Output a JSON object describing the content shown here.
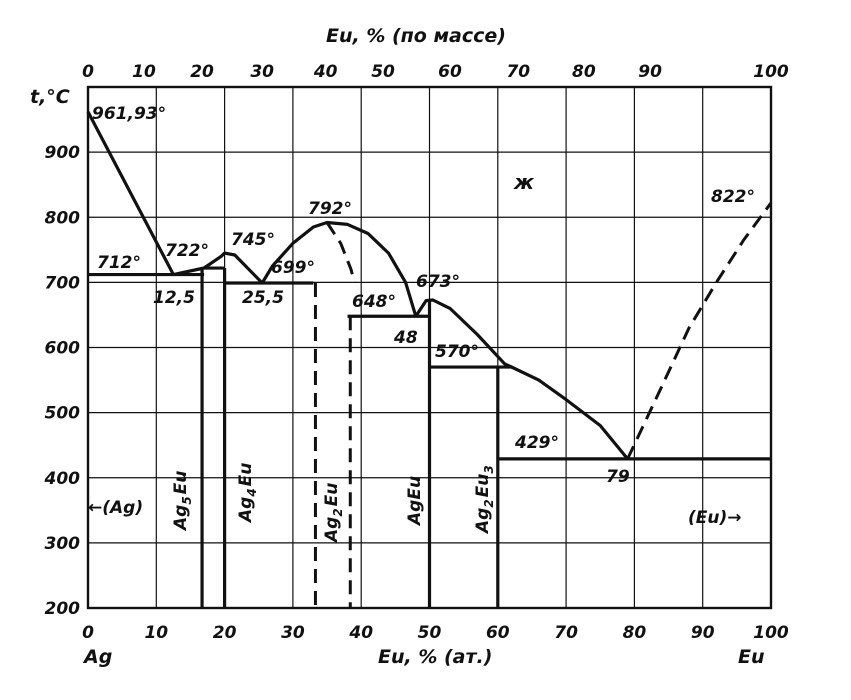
{
  "chart_data": {
    "type": "phase-diagram",
    "system": [
      "Ag",
      "Eu"
    ],
    "x_bottom": {
      "label": "Eu, % (ат.)",
      "ticks": [
        "0",
        "10",
        "20",
        "30",
        "40",
        "50",
        "60",
        "70",
        "80",
        "90",
        "100"
      ],
      "range": [
        0,
        100
      ],
      "left_element": "Ag",
      "right_element": "Eu"
    },
    "x_top": {
      "label": "Eu, % (по массе)",
      "ticks": [
        "0",
        "10",
        "20",
        "30",
        "40",
        "50",
        "60",
        "70",
        "80",
        "90",
        "100"
      ],
      "positions_at_pct": [
        0,
        8.2,
        16.7,
        25.5,
        34.8,
        43.2,
        53,
        63,
        72.6,
        82.3,
        100
      ]
    },
    "y": {
      "label": "t,°C",
      "ticks": [
        "200",
        "300",
        "400",
        "500",
        "600",
        "700",
        "800",
        "900"
      ],
      "range": [
        200,
        1000
      ]
    },
    "grid": true,
    "liquidus_solid": [
      [
        [
          0,
          961.93
        ],
        [
          12.5,
          712
        ]
      ],
      [
        [
          12.5,
          712
        ],
        [
          17,
          722
        ],
        [
          19.5,
          740
        ],
        [
          20,
          745
        ],
        [
          21.5,
          742
        ],
        [
          25.5,
          699
        ]
      ],
      [
        [
          25.5,
          699
        ],
        [
          27,
          725
        ],
        [
          30,
          760
        ],
        [
          33,
          785
        ],
        [
          35,
          792
        ],
        [
          38,
          789
        ],
        [
          41,
          775
        ],
        [
          44,
          745
        ],
        [
          46.5,
          700
        ],
        [
          48,
          648
        ]
      ],
      [
        [
          48,
          648
        ],
        [
          49.5,
          672
        ],
        [
          50.5,
          673
        ],
        [
          53,
          660
        ],
        [
          57,
          620
        ],
        [
          61,
          575
        ],
        [
          62,
          570
        ],
        [
          66,
          550
        ],
        [
          70,
          520
        ],
        [
          75,
          480
        ],
        [
          79,
          429
        ]
      ]
    ],
    "liquidus_dashed": [
      [
        [
          35,
          792
        ],
        [
          37,
          760
        ],
        [
          38.5,
          720
        ],
        [
          39,
          700
        ]
      ],
      [
        [
          79,
          429
        ],
        [
          84,
          540
        ],
        [
          88,
          630
        ],
        [
          92,
          700
        ],
        [
          96,
          765
        ],
        [
          100,
          822
        ]
      ]
    ],
    "solidus_lines": [
      {
        "x": [
          0,
          17
        ],
        "t": 712
      },
      {
        "x": [
          17,
          20
        ],
        "t": 722
      },
      {
        "x": [
          20,
          33
        ],
        "t": 699
      },
      {
        "x": [
          38,
          50
        ],
        "t": 648
      },
      {
        "x": [
          50,
          62
        ],
        "t": 570
      },
      {
        "x": [
          60,
          100
        ],
        "t": 429
      }
    ],
    "compound_lines": [
      {
        "name": "Ag5Eu",
        "x": 16.7,
        "t_top": 722,
        "style": "solid"
      },
      {
        "name": "Ag4Eu",
        "x": 20,
        "t_top": 722,
        "style": "solid"
      },
      {
        "name": "Ag2Eu",
        "x": 33.3,
        "t_top": 699,
        "style": "dashed"
      },
      {
        "name": "Ag2Eu",
        "x": 38.4,
        "t_top": 648,
        "style": "dashed"
      },
      {
        "name": "AgEu",
        "x": 50,
        "t_top": 673,
        "style": "solid"
      },
      {
        "name": "Ag2Eu3",
        "x": 60,
        "t_top": 570,
        "style": "solid"
      }
    ],
    "temperature_labels": [
      "961,93°",
      "712°",
      "722°",
      "745°",
      "699°",
      "792°",
      "648°",
      "673°",
      "570°",
      "429°",
      "822°"
    ],
    "composition_labels": [
      "12,5",
      "25,5",
      "48",
      "79"
    ],
    "phase_labels": {
      "liquid": "ж",
      "ag_solid": "←(Ag)",
      "eu_solid": "(Eu)→"
    },
    "compound_labels": {
      "ag5eu_main": "Ag",
      "ag5eu_sub": "5",
      "ag5eu_tail": "Eu",
      "ag4eu_main": "Ag",
      "ag4eu_sub": "4",
      "ag4eu_tail": "Eu",
      "ag2eu_main": "Ag",
      "ag2eu_sub": "2",
      "ag2eu_tail": "Eu",
      "ageu": "AgEu",
      "ag2eu3_main": "Ag",
      "ag2eu3_sub": "2",
      "ag2eu3_tail": "Eu",
      "ag2eu3_sub2": "3"
    }
  }
}
